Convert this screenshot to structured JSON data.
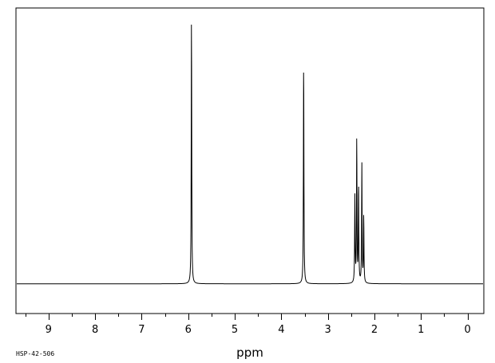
{
  "chart_data": {
    "type": "line",
    "xlabel": "ppm",
    "x_reversed": true,
    "xlim": [
      9.7,
      -0.35
    ],
    "ylim": [
      -0.11,
      1.02
    ],
    "x_ticks": [
      9,
      8,
      7,
      6,
      5,
      4,
      3,
      2,
      1,
      0
    ],
    "x_tick_labels": [
      "9",
      "8",
      "7",
      "6",
      "5",
      "4",
      "3",
      "2",
      "1",
      "0"
    ],
    "series": [
      {
        "peaks": [
          {
            "ppm": 5.93,
            "height": 1.0
          },
          {
            "ppm": 3.52,
            "height": 0.84
          },
          {
            "ppm": 2.42,
            "height": 0.32
          },
          {
            "ppm": 2.38,
            "height": 0.54
          },
          {
            "ppm": 2.34,
            "height": 0.37
          },
          {
            "ppm": 2.27,
            "height": 0.44
          },
          {
            "ppm": 2.23,
            "height": 0.25
          }
        ]
      }
    ],
    "baseline": 0.0,
    "grid": false
  },
  "footer": {
    "sample_code": "HSP-42-506"
  },
  "colors": {
    "line": "#000000",
    "frame": "#000000",
    "background": "#ffffff"
  }
}
